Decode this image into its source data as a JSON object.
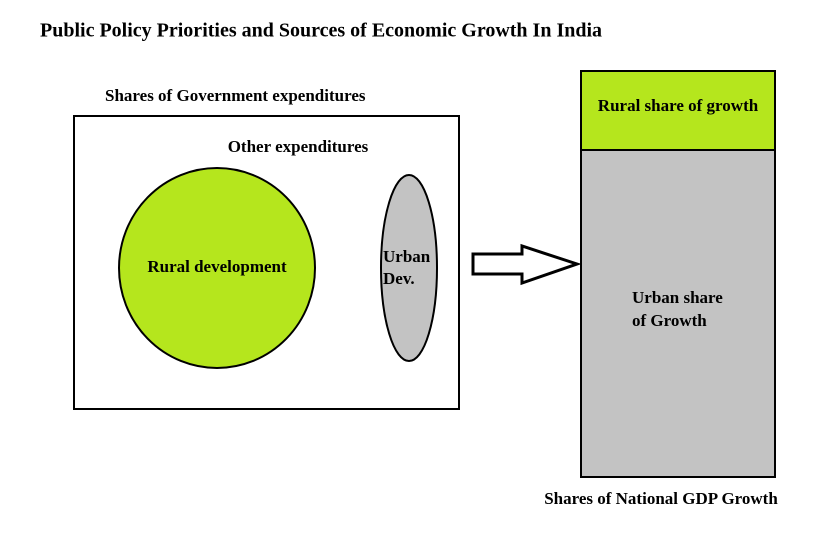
{
  "header": {
    "title": "Public Policy Priorities and Sources of Economic Growth In India"
  },
  "left_panel": {
    "label": "Shares of Government expenditures",
    "other": "Other expenditures",
    "rural": "Rural development",
    "urban": [
      "Urban",
      "Dev."
    ]
  },
  "right_panel": {
    "rural": "Rural share of growth",
    "urban": [
      "Urban share",
      "of Growth"
    ],
    "label": "Shares of National GDP Growth"
  }
}
